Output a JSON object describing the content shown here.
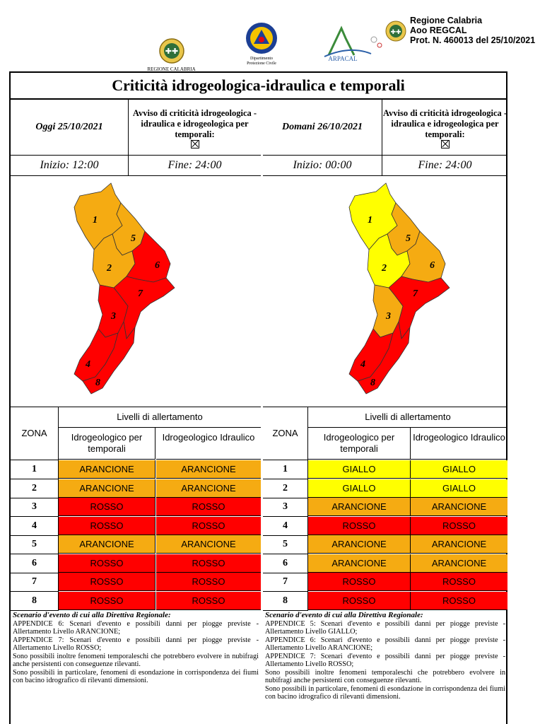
{
  "header": {
    "logos": [
      {
        "name": "regione-calabria-logo",
        "caption": "REGIONE CALABRIA"
      },
      {
        "name": "protezione-civile-logo",
        "caption": "Dipartimento\nProtezione Civile"
      },
      {
        "name": "arpacal-logo",
        "caption": "ARPACAL"
      }
    ],
    "protocol": [
      "Regione Calabria",
      "Aoo REGCAL",
      "Prot. N. 460013 del 25/10/2021"
    ]
  },
  "title": "Criticità idrogeologica-idraulica e temporali",
  "colors": {
    "ARANCIONE": "#f5ab12",
    "GIALLO": "#ffff00",
    "ROSSO": "#ff0000"
  },
  "days": [
    {
      "label": "Oggi 25/10/2021",
      "avviso": "Avviso di criticità idrogeologica - idraulica e idrogeologica per temporali:",
      "start": "Inizio: 12:00",
      "end": "Fine: 24:00",
      "table_header": {
        "zona": "ZONA",
        "livelli": "Livelli di allertamento",
        "col1": "Idrogeologico per temporali",
        "col2": "Idrogeologico Idraulico"
      },
      "rows": [
        {
          "zone": "1",
          "temporali": "ARANCIONE",
          "idraulico": "ARANCIONE"
        },
        {
          "zone": "2",
          "temporali": "ARANCIONE",
          "idraulico": "ARANCIONE"
        },
        {
          "zone": "3",
          "temporali": "ROSSO",
          "idraulico": "ROSSO"
        },
        {
          "zone": "4",
          "temporali": "ROSSO",
          "idraulico": "ROSSO"
        },
        {
          "zone": "5",
          "temporali": "ARANCIONE",
          "idraulico": "ARANCIONE"
        },
        {
          "zone": "6",
          "temporali": "ROSSO",
          "idraulico": "ROSSO"
        },
        {
          "zone": "7",
          "temporali": "ROSSO",
          "idraulico": "ROSSO"
        },
        {
          "zone": "8",
          "temporali": "ROSSO",
          "idraulico": "ROSSO"
        }
      ],
      "scenario_title": "Scenario d'evento di cui alla Direttiva Regionale:",
      "scenario_lines": [
        "APPENDICE 6: Scenari d'evento e possibili danni per piogge previste - Allertamento Livello ARANCIONE;",
        "APPENDICE 7: Scenari d'evento e possibili danni per piogge previste - Allertamento Livello ROSSO;",
        "Sono possibili inoltre fenomeni temporaleschi che potrebbero evolvere in nubifragi anche persistenti con conseguenze rilevanti.",
        "Sono possibili in particolare, fenomeni di esondazione in corrispondenza dei fiumi con bacino idrografico di rilevanti dimensioni."
      ]
    },
    {
      "label": "Domani 26/10/2021",
      "avviso": "Avviso di criticità idrogeologica - idraulica e idrogeologica per temporali:",
      "start": "Inizio: 00:00",
      "end": "Fine: 24:00",
      "table_header": {
        "zona": "ZONA",
        "livelli": "Livelli di allertamento",
        "col1": "Idrogeologico per temporali",
        "col2": "Idrogeologico Idraulico"
      },
      "rows": [
        {
          "zone": "1",
          "temporali": "GIALLO",
          "idraulico": "GIALLO"
        },
        {
          "zone": "2",
          "temporali": "GIALLO",
          "idraulico": "GIALLO"
        },
        {
          "zone": "3",
          "temporali": "ARANCIONE",
          "idraulico": "ARANCIONE"
        },
        {
          "zone": "4",
          "temporali": "ROSSO",
          "idraulico": "ROSSO"
        },
        {
          "zone": "5",
          "temporali": "ARANCIONE",
          "idraulico": "ARANCIONE"
        },
        {
          "zone": "6",
          "temporali": "ARANCIONE",
          "idraulico": "ARANCIONE"
        },
        {
          "zone": "7",
          "temporali": "ROSSO",
          "idraulico": "ROSSO"
        },
        {
          "zone": "8",
          "temporali": "ROSSO",
          "idraulico": "ROSSO"
        }
      ],
      "scenario_title": "Scenario d'evento di cui alla Direttiva Regionale:",
      "scenario_lines": [
        "APPENDICE 5: Scenari d'evento e possibili danni per piogge previste - Allertamento Livello GIALLO;",
        "APPENDICE 6: Scenari d'evento e possibili danni per piogge previste - Allertamento Livello ARANCIONE;",
        "APPENDICE 7: Scenari d'evento e possibili danni per piogge previste - Allertamento Livello ROSSO;",
        "Sono possibili inoltre fenomeni temporaleschi che potrebbero evolvere in nubifragi anche persistenti con conseguenze rilevanti.",
        "Sono possibili in particolare, fenomeni di esondazione in corrispondenza dei fiumi con bacino idrografico di rilevanti dimensioni."
      ]
    }
  ]
}
